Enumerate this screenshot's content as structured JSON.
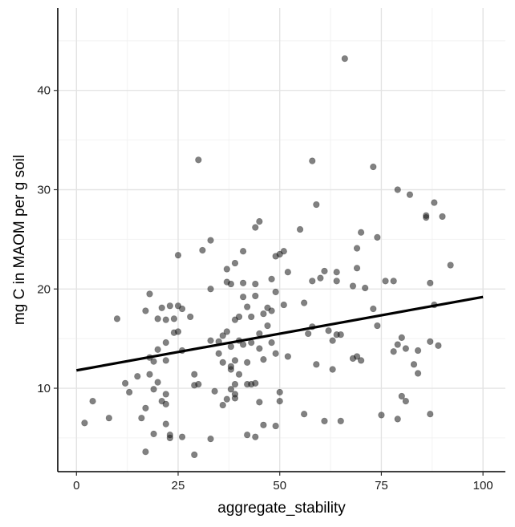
{
  "chart_data": {
    "type": "scatter",
    "xlabel": "aggregate_stability",
    "ylabel": "mg C in MAOM per g soil",
    "xlim": [
      -4.6,
      105.5
    ],
    "ylim": [
      1.6,
      48.3
    ],
    "x_ticks": [
      0,
      25,
      50,
      75,
      100
    ],
    "x_tick_labels": [
      "0",
      "25",
      "50",
      "75",
      "100"
    ],
    "y_ticks": [
      10,
      20,
      30,
      40
    ],
    "y_tick_labels": [
      "10",
      "20",
      "30",
      "40"
    ],
    "grid": true,
    "legend": "none",
    "point_color": "#1a1a1a",
    "point_opacity": 0.55,
    "trend_line": {
      "x": [
        0,
        100
      ],
      "y": [
        11.8,
        19.2
      ]
    },
    "points": [
      [
        2,
        6.5
      ],
      [
        4,
        8.7
      ],
      [
        8,
        7
      ],
      [
        10,
        17
      ],
      [
        12,
        10.5
      ],
      [
        13,
        9.6
      ],
      [
        15,
        11.2
      ],
      [
        16,
        7
      ],
      [
        17,
        8
      ],
      [
        17,
        3.6
      ],
      [
        17,
        17.8
      ],
      [
        18,
        19.5
      ],
      [
        18,
        11.4
      ],
      [
        18,
        13.1
      ],
      [
        19,
        5.4
      ],
      [
        19,
        12.7
      ],
      [
        19,
        9.9
      ],
      [
        20,
        17
      ],
      [
        20,
        10.6
      ],
      [
        20,
        13.9
      ],
      [
        21,
        18.1
      ],
      [
        21,
        8.7
      ],
      [
        22,
        6.4
      ],
      [
        22,
        8.4
      ],
      [
        22,
        9.4
      ],
      [
        22,
        12.8
      ],
      [
        22,
        14.6
      ],
      [
        22,
        16.9
      ],
      [
        23,
        5.3
      ],
      [
        23,
        5
      ],
      [
        23,
        18.3
      ],
      [
        24,
        15.6
      ],
      [
        24,
        17
      ],
      [
        25,
        18.3
      ],
      [
        25,
        15.7
      ],
      [
        25,
        23.4
      ],
      [
        26,
        5.1
      ],
      [
        26,
        13.8
      ],
      [
        26,
        18
      ],
      [
        28,
        17.2
      ],
      [
        29,
        3.3
      ],
      [
        29,
        11.4
      ],
      [
        29,
        10.3
      ],
      [
        30,
        10.4
      ],
      [
        30,
        33
      ],
      [
        31,
        23.9
      ],
      [
        33,
        24.9
      ],
      [
        33,
        14.8
      ],
      [
        33,
        20
      ],
      [
        33,
        4.9
      ],
      [
        34,
        9.7
      ],
      [
        35,
        13.5
      ],
      [
        35,
        14.7
      ],
      [
        36,
        8.3
      ],
      [
        36,
        12.6
      ],
      [
        36,
        15.3
      ],
      [
        37,
        15.7
      ],
      [
        37,
        20.7
      ],
      [
        37,
        22
      ],
      [
        37,
        8.9
      ],
      [
        38,
        20.5
      ],
      [
        38,
        9.9
      ],
      [
        38,
        11.9
      ],
      [
        38,
        12.2
      ],
      [
        38,
        14.2
      ],
      [
        39,
        9.4
      ],
      [
        39,
        9
      ],
      [
        39,
        10.4
      ],
      [
        39,
        12.8
      ],
      [
        39,
        16.9
      ],
      [
        39,
        22.6
      ],
      [
        40,
        17.2
      ],
      [
        40,
        14.8
      ],
      [
        40,
        11.4
      ],
      [
        41,
        19.2
      ],
      [
        41,
        20.6
      ],
      [
        41,
        23.8
      ],
      [
        41,
        14.4
      ],
      [
        42,
        10.4
      ],
      [
        42,
        12.6
      ],
      [
        42,
        18.2
      ],
      [
        42,
        5.3
      ],
      [
        43,
        10.4
      ],
      [
        43,
        14.6
      ],
      [
        43,
        17.2
      ],
      [
        44,
        20.5
      ],
      [
        44,
        26.2
      ],
      [
        44,
        19.3
      ],
      [
        44,
        10.5
      ],
      [
        44,
        5.1
      ],
      [
        45,
        26.8
      ],
      [
        45,
        15.5
      ],
      [
        45,
        14
      ],
      [
        45,
        8.6
      ],
      [
        46,
        6.3
      ],
      [
        46,
        17.5
      ],
      [
        46,
        12.9
      ],
      [
        47,
        18.1
      ],
      [
        47,
        16.3
      ],
      [
        48,
        21
      ],
      [
        48,
        17.8
      ],
      [
        48,
        14.6
      ],
      [
        49,
        13.5
      ],
      [
        49,
        19.7
      ],
      [
        49,
        6.2
      ],
      [
        49,
        23.3
      ],
      [
        50,
        23.5
      ],
      [
        50,
        9.6
      ],
      [
        50,
        8.7
      ],
      [
        51,
        18.4
      ],
      [
        51,
        23.8
      ],
      [
        52,
        13.2
      ],
      [
        52,
        21.7
      ],
      [
        55,
        26
      ],
      [
        56,
        7.4
      ],
      [
        56,
        18.6
      ],
      [
        57,
        15.5
      ],
      [
        58,
        16.2
      ],
      [
        58,
        20.8
      ],
      [
        58,
        32.9
      ],
      [
        59,
        28.5
      ],
      [
        59,
        12.4
      ],
      [
        60,
        21.1
      ],
      [
        61,
        21.8
      ],
      [
        61,
        6.7
      ],
      [
        62,
        15.8
      ],
      [
        63,
        14.8
      ],
      [
        63,
        11.9
      ],
      [
        64,
        15.4
      ],
      [
        64,
        20.8
      ],
      [
        64,
        21.7
      ],
      [
        65,
        6.7
      ],
      [
        65,
        15.4
      ],
      [
        66,
        43.2
      ],
      [
        68,
        13
      ],
      [
        68,
        20.3
      ],
      [
        69,
        24.1
      ],
      [
        69,
        22.1
      ],
      [
        69,
        13.2
      ],
      [
        70,
        12.8
      ],
      [
        70,
        25.7
      ],
      [
        71,
        20.1
      ],
      [
        73,
        18
      ],
      [
        73,
        32.3
      ],
      [
        74,
        25.2
      ],
      [
        74,
        16.3
      ],
      [
        75,
        7.3
      ],
      [
        76,
        20.8
      ],
      [
        78,
        20.8
      ],
      [
        78,
        13.7
      ],
      [
        79,
        6.9
      ],
      [
        79,
        14.4
      ],
      [
        79,
        30
      ],
      [
        80,
        9.2
      ],
      [
        80,
        15.1
      ],
      [
        81,
        8.7
      ],
      [
        81,
        14
      ],
      [
        82,
        29.5
      ],
      [
        83,
        12.4
      ],
      [
        84,
        11.5
      ],
      [
        84,
        13.8
      ],
      [
        86,
        27.2
      ],
      [
        86,
        27.4
      ],
      [
        87,
        20.6
      ],
      [
        87,
        14.7
      ],
      [
        87,
        7.4
      ],
      [
        88,
        28.7
      ],
      [
        88,
        18.4
      ],
      [
        89,
        14.3
      ],
      [
        90,
        27.3
      ],
      [
        92,
        22.4
      ]
    ]
  }
}
